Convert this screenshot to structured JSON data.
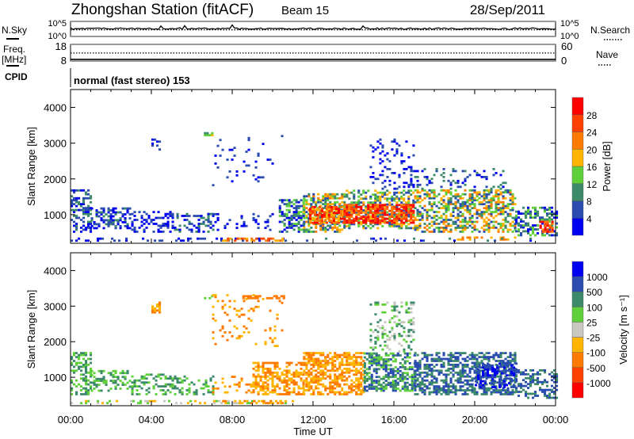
{
  "header": {
    "station": "Zhongshan Station (fitACF)",
    "beam": "Beam 15",
    "date": "28/Sep/2011"
  },
  "noise_panel": {
    "left_label": "N.Sky",
    "left_ticks": [
      "10^5",
      "10^0"
    ],
    "right_label": "N.Search",
    "right_ticks": [
      "10^5",
      "10^0"
    ],
    "n_sky_log10": 2.6,
    "n_search_log10": 2.2
  },
  "freq_panel": {
    "left_label": "Freq.",
    "left_unit": "[MHz]",
    "left_ticks": [
      "18",
      "8"
    ],
    "right_label": "Nave",
    "right_ticks": [
      "60",
      "0"
    ],
    "freq_mhz": 9,
    "nave": 29
  },
  "cpid": {
    "label": "CPID",
    "value": "normal (fast stereo) 153"
  },
  "chart_data": [
    {
      "type": "heatmap",
      "name": "power",
      "xlabel": "",
      "ylabel": "Slant Range [km]",
      "xlim": [
        0,
        24
      ],
      "ylim": [
        200,
        4500
      ],
      "x_ticks": [
        "00:00",
        "04:00",
        "08:00",
        "12:00",
        "16:00",
        "20:00",
        "00:00"
      ],
      "y_ticks": [
        "1000",
        "2000",
        "3000",
        "4000"
      ],
      "y_tick_values": [
        1000,
        2000,
        3000,
        4000
      ],
      "colorbar": {
        "label": "Power [dB]",
        "ticks": [
          "4",
          "8",
          "12",
          "16",
          "20",
          "24",
          "28"
        ],
        "colors": [
          "#0000f0",
          "#2a4cb0",
          "#3d8a6b",
          "#5fd03a",
          "#ffb400",
          "#ff7a00",
          "#ff4000",
          "#ff0000"
        ]
      },
      "regions_note": "[t0_h, t1_h, range0_km, range1_km, level_min, level_max, fill_fraction]",
      "regions": [
        [
          0,
          1,
          500,
          1700,
          0,
          2,
          0.45
        ],
        [
          1,
          3,
          600,
          1200,
          0,
          2,
          0.4
        ],
        [
          3,
          5,
          500,
          1100,
          0,
          1,
          0.35
        ],
        [
          4,
          4.4,
          2800,
          3100,
          0,
          1,
          0.5
        ],
        [
          5,
          7,
          500,
          1000,
          0,
          2,
          0.35
        ],
        [
          6.6,
          7,
          3200,
          3300,
          2,
          4,
          0.6
        ],
        [
          7,
          10,
          550,
          1000,
          0,
          1,
          0.15
        ],
        [
          7,
          10.5,
          1800,
          3300,
          0,
          1,
          0.06
        ],
        [
          0,
          11,
          250,
          330,
          0,
          1,
          0.3
        ],
        [
          7.5,
          10.5,
          250,
          330,
          4,
          6,
          0.5
        ],
        [
          10.3,
          11.5,
          500,
          1400,
          0,
          3,
          0.5
        ],
        [
          11.5,
          13.5,
          500,
          1600,
          1,
          5,
          0.6
        ],
        [
          11.8,
          13.5,
          750,
          1200,
          4,
          7,
          0.7
        ],
        [
          13.5,
          17,
          600,
          1700,
          1,
          4,
          0.55
        ],
        [
          13.5,
          17,
          750,
          1300,
          5,
          7,
          0.7
        ],
        [
          14.8,
          17,
          1700,
          3100,
          0,
          1,
          0.2
        ],
        [
          17,
          22,
          500,
          1700,
          1,
          5,
          0.5
        ],
        [
          17,
          21.5,
          1700,
          2300,
          0,
          2,
          0.15
        ],
        [
          22,
          24,
          400,
          1200,
          0,
          3,
          0.5
        ],
        [
          23.2,
          23.8,
          500,
          800,
          5,
          7,
          0.7
        ],
        [
          19,
          22,
          280,
          380,
          4,
          5,
          0.3
        ],
        [
          10,
          24,
          250,
          330,
          0,
          2,
          0.15
        ]
      ]
    },
    {
      "type": "heatmap",
      "name": "velocity",
      "xlabel": "Time UT",
      "ylabel": "Slant Range [km]",
      "xlim": [
        0,
        24
      ],
      "ylim": [
        200,
        4500
      ],
      "x_ticks": [
        "00:00",
        "04:00",
        "08:00",
        "12:00",
        "16:00",
        "20:00",
        "00:00"
      ],
      "y_ticks": [
        "1000",
        "2000",
        "3000",
        "4000"
      ],
      "y_tick_values": [
        1000,
        2000,
        3000,
        4000
      ],
      "colorbar": {
        "label": "Velocity [m s⁻¹]",
        "ticks": [
          "-1000",
          "-500",
          "-100",
          "-25",
          "25",
          "100",
          "500",
          "1000"
        ],
        "colors": [
          "#ff0000",
          "#ff4000",
          "#ff7a00",
          "#ffb400",
          "#c8c8c0",
          "#5fd03a",
          "#3d8a6b",
          "#2a4cb0",
          "#0000f0"
        ]
      },
      "regions": [
        [
          0,
          1,
          500,
          1700,
          5,
          6,
          0.45
        ],
        [
          1,
          3,
          600,
          1200,
          5,
          6,
          0.4
        ],
        [
          3,
          5,
          500,
          1100,
          5,
          6,
          0.35
        ],
        [
          4,
          4.4,
          2800,
          3100,
          2,
          3,
          0.5
        ],
        [
          5,
          7,
          500,
          1000,
          5,
          6,
          0.35
        ],
        [
          6.6,
          7,
          3200,
          3300,
          4,
          5,
          0.6
        ],
        [
          7,
          10,
          550,
          1000,
          2,
          3,
          0.15
        ],
        [
          7,
          10.5,
          1800,
          3300,
          2,
          3,
          0.06
        ],
        [
          8.5,
          10.5,
          3200,
          3300,
          2,
          2,
          0.6
        ],
        [
          0,
          11,
          250,
          330,
          3,
          5,
          0.3
        ],
        [
          7.5,
          10.5,
          250,
          330,
          2,
          3,
          0.5
        ],
        [
          9,
          11.5,
          500,
          1400,
          2,
          3,
          0.5
        ],
        [
          11.5,
          14.5,
          500,
          1700,
          2,
          3,
          0.65
        ],
        [
          14.5,
          17,
          600,
          1700,
          5,
          7,
          0.6
        ],
        [
          14.8,
          17,
          1700,
          3100,
          4,
          6,
          0.25
        ],
        [
          17,
          22,
          500,
          1700,
          6,
          7,
          0.55
        ],
        [
          20,
          22,
          700,
          1400,
          7,
          8,
          0.5
        ],
        [
          22,
          24,
          400,
          1200,
          6,
          7,
          0.5
        ]
      ]
    }
  ]
}
